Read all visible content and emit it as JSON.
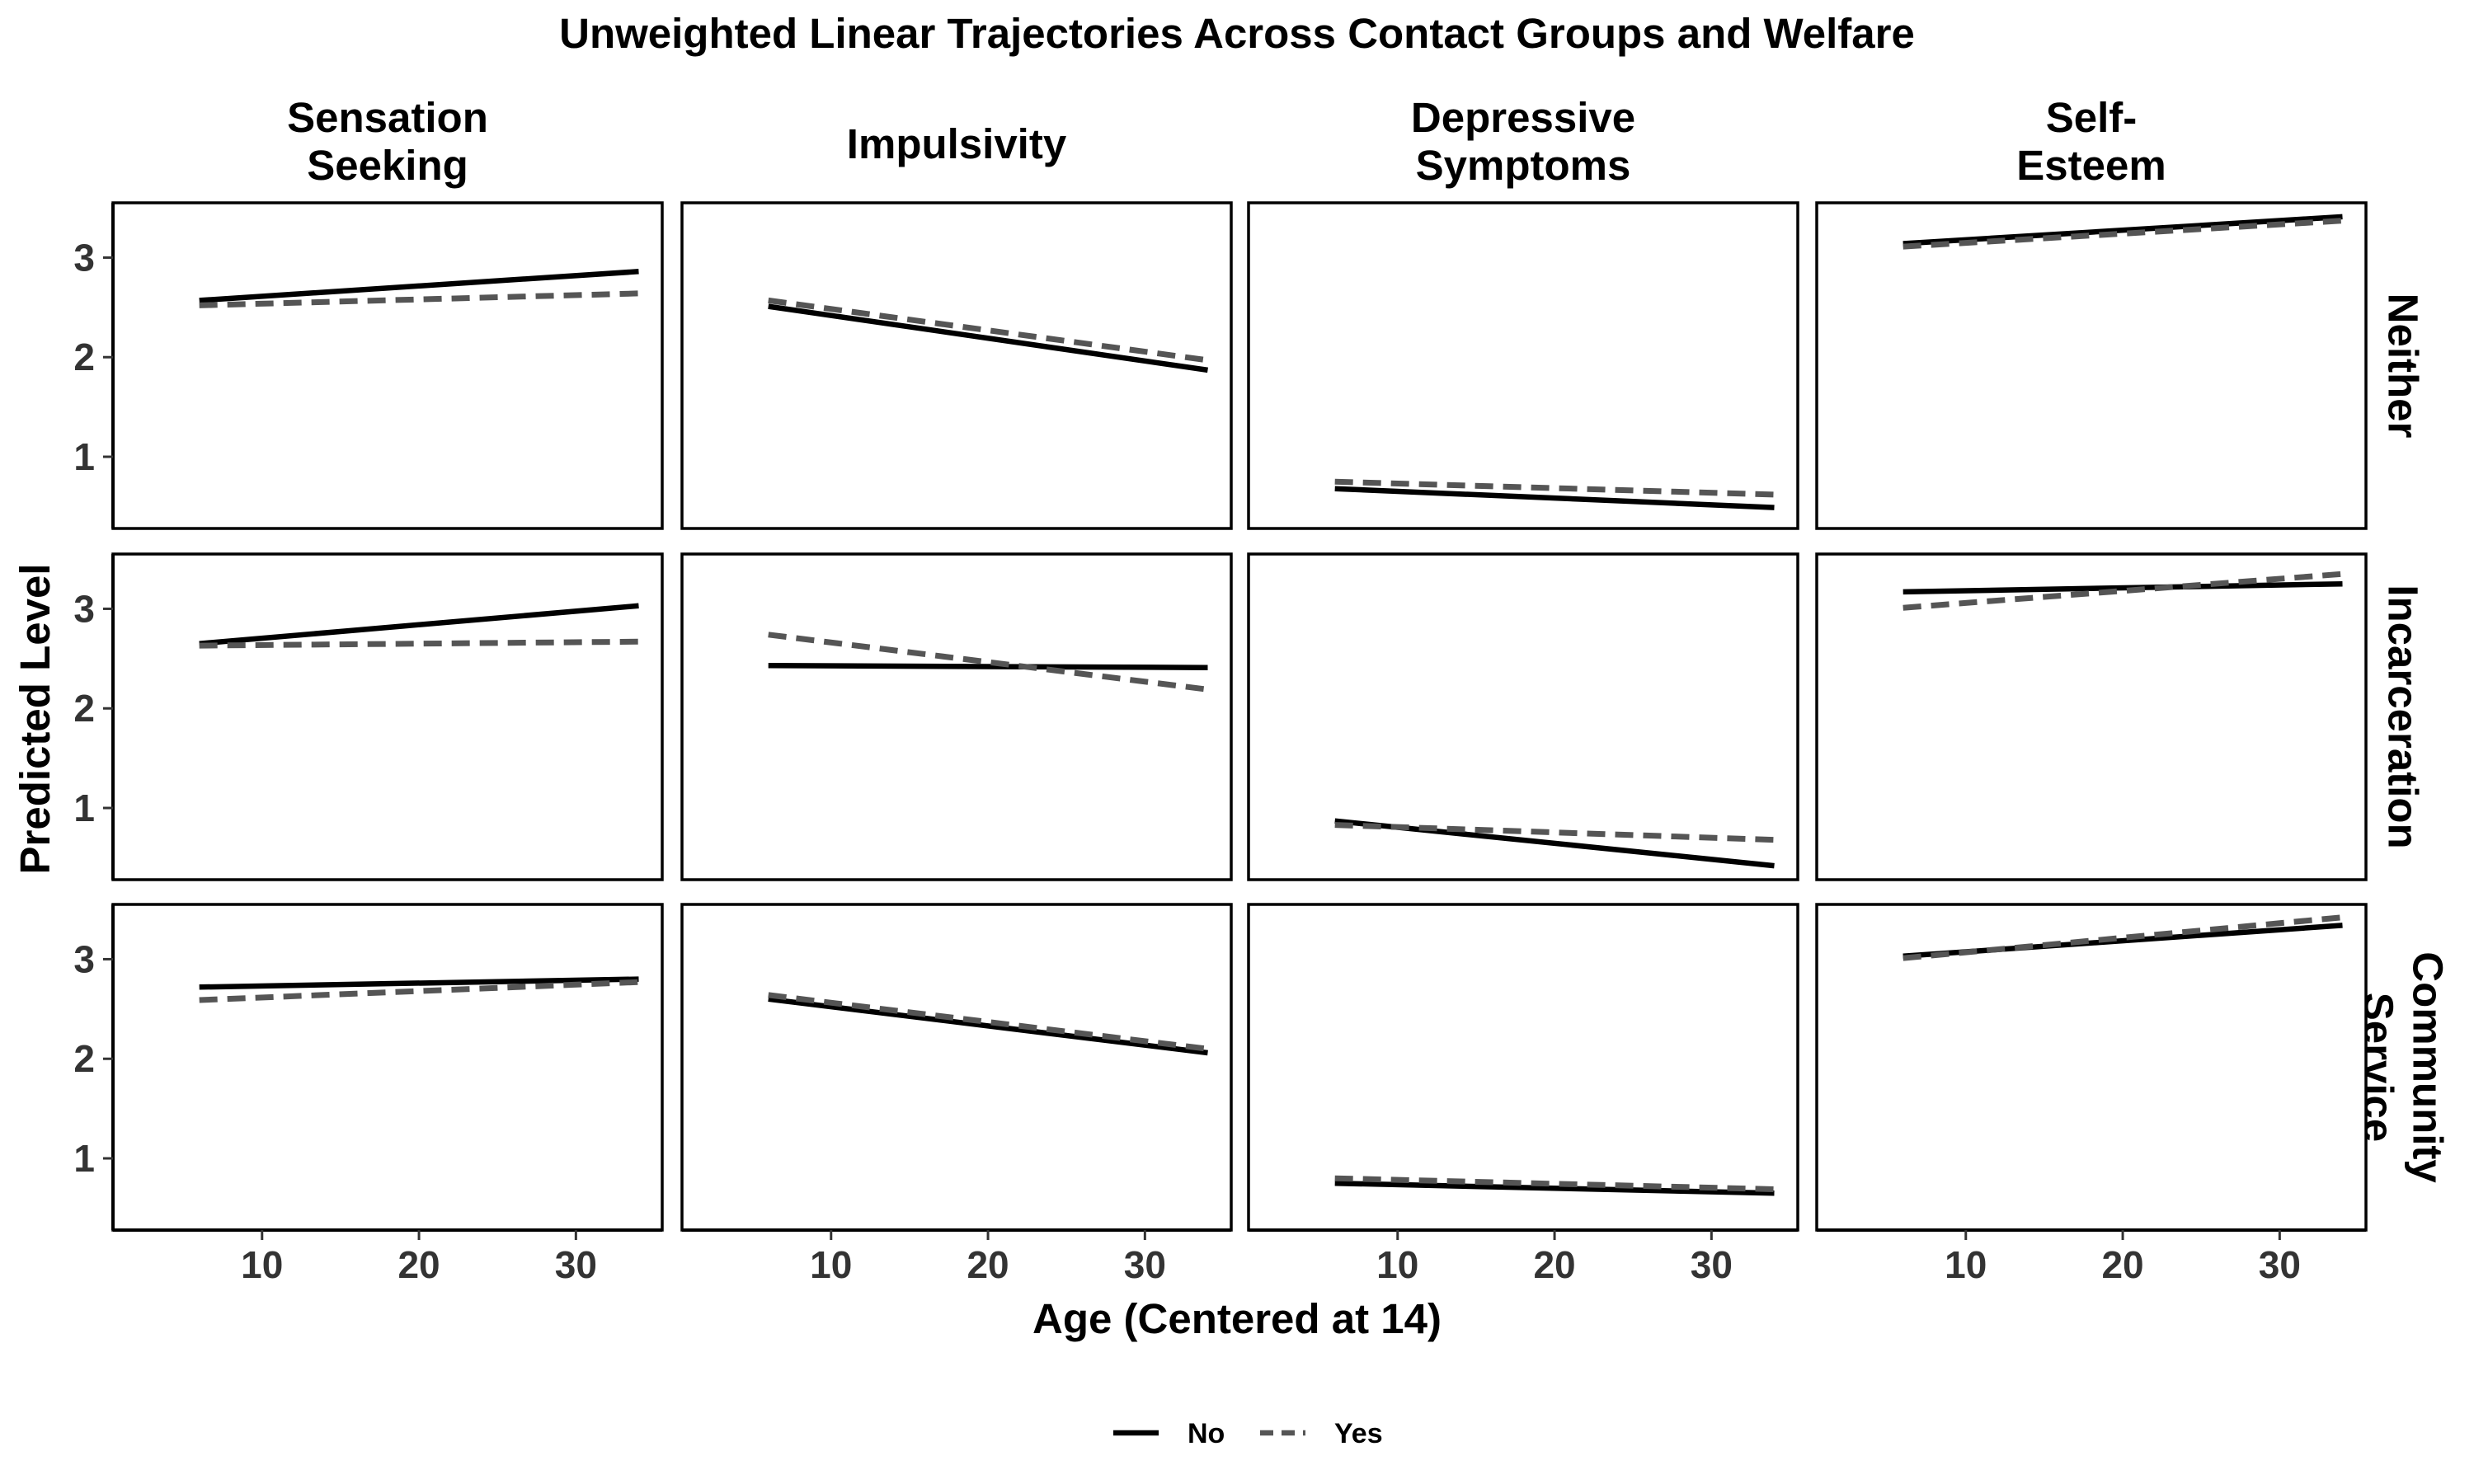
{
  "chart_data": {
    "type": "line",
    "title": "Unweighted Linear Trajectories Across Contact Groups and Welfare",
    "xlabel": "Age (Centered at 14)",
    "ylabel": "Predicted Level",
    "xlim": [
      0.5,
      35.5
    ],
    "ylim": [
      0.28,
      3.55
    ],
    "x_ticks": [
      10,
      20,
      30
    ],
    "y_ticks": [
      1,
      2,
      3
    ],
    "grid": false,
    "columns": [
      {
        "key": "ss",
        "label_lines": [
          "Sensation",
          "Seeking"
        ]
      },
      {
        "key": "imp",
        "label_lines": [
          "Impulsivity"
        ]
      },
      {
        "key": "dep",
        "label_lines": [
          "Depressive",
          "Symptoms"
        ]
      },
      {
        "key": "se",
        "label_lines": [
          "Self-",
          "Esteem"
        ]
      }
    ],
    "rows": [
      {
        "key": "neither",
        "label_lines": [
          "Neither"
        ]
      },
      {
        "key": "incarceration",
        "label_lines": [
          "Incarceration"
        ]
      },
      {
        "key": "community_service",
        "label_lines": [
          "Community",
          "Service"
        ]
      }
    ],
    "legend": {
      "position": "bottom",
      "entries": [
        {
          "label": "No",
          "style": "solid",
          "color": "#000000"
        },
        {
          "label": "Yes",
          "style": "dashed",
          "color": "#555555"
        }
      ]
    },
    "panels": [
      {
        "row": "neither",
        "column": "ss",
        "series": [
          {
            "name": "No",
            "x": [
              6,
              34
            ],
            "y": [
              2.57,
              2.86
            ]
          },
          {
            "name": "Yes",
            "x": [
              6,
              34
            ],
            "y": [
              2.52,
              2.64
            ]
          }
        ]
      },
      {
        "row": "neither",
        "column": "imp",
        "series": [
          {
            "name": "No",
            "x": [
              6,
              34
            ],
            "y": [
              2.51,
              1.87
            ]
          },
          {
            "name": "Yes",
            "x": [
              6,
              34
            ],
            "y": [
              2.57,
              1.97
            ]
          }
        ]
      },
      {
        "row": "neither",
        "column": "dep",
        "series": [
          {
            "name": "No",
            "x": [
              6,
              34
            ],
            "y": [
              0.68,
              0.49
            ]
          },
          {
            "name": "Yes",
            "x": [
              6,
              34
            ],
            "y": [
              0.75,
              0.62
            ]
          }
        ]
      },
      {
        "row": "neither",
        "column": "se",
        "series": [
          {
            "name": "No",
            "x": [
              6,
              34
            ],
            "y": [
              3.14,
              3.41
            ]
          },
          {
            "name": "Yes",
            "x": [
              6,
              34
            ],
            "y": [
              3.11,
              3.37
            ]
          }
        ]
      },
      {
        "row": "incarceration",
        "column": "ss",
        "series": [
          {
            "name": "No",
            "x": [
              6,
              34
            ],
            "y": [
              2.65,
              3.03
            ]
          },
          {
            "name": "Yes",
            "x": [
              6,
              34
            ],
            "y": [
              2.63,
              2.67
            ]
          }
        ]
      },
      {
        "row": "incarceration",
        "column": "imp",
        "series": [
          {
            "name": "No",
            "x": [
              6,
              34
            ],
            "y": [
              2.43,
              2.41
            ]
          },
          {
            "name": "Yes",
            "x": [
              6,
              34
            ],
            "y": [
              2.74,
              2.19
            ]
          }
        ]
      },
      {
        "row": "incarceration",
        "column": "dep",
        "series": [
          {
            "name": "No",
            "x": [
              6,
              34
            ],
            "y": [
              0.87,
              0.42
            ]
          },
          {
            "name": "Yes",
            "x": [
              6,
              34
            ],
            "y": [
              0.83,
              0.68
            ]
          }
        ]
      },
      {
        "row": "incarceration",
        "column": "se",
        "series": [
          {
            "name": "No",
            "x": [
              6,
              34
            ],
            "y": [
              3.17,
              3.25
            ]
          },
          {
            "name": "Yes",
            "x": [
              6,
              34
            ],
            "y": [
              3.01,
              3.35
            ]
          }
        ]
      },
      {
        "row": "community_service",
        "column": "ss",
        "series": [
          {
            "name": "No",
            "x": [
              6,
              34
            ],
            "y": [
              2.72,
              2.8
            ]
          },
          {
            "name": "Yes",
            "x": [
              6,
              34
            ],
            "y": [
              2.59,
              2.77
            ]
          }
        ]
      },
      {
        "row": "community_service",
        "column": "imp",
        "series": [
          {
            "name": "No",
            "x": [
              6,
              34
            ],
            "y": [
              2.6,
              2.06
            ]
          },
          {
            "name": "Yes",
            "x": [
              6,
              34
            ],
            "y": [
              2.64,
              2.1
            ]
          }
        ]
      },
      {
        "row": "community_service",
        "column": "dep",
        "series": [
          {
            "name": "No",
            "x": [
              6,
              34
            ],
            "y": [
              0.75,
              0.65
            ]
          },
          {
            "name": "Yes",
            "x": [
              6,
              34
            ],
            "y": [
              0.8,
              0.69
            ]
          }
        ]
      },
      {
        "row": "community_service",
        "column": "se",
        "series": [
          {
            "name": "No",
            "x": [
              6,
              34
            ],
            "y": [
              3.03,
              3.34
            ]
          },
          {
            "name": "Yes",
            "x": [
              6,
              34
            ],
            "y": [
              3.01,
              3.42
            ]
          }
        ]
      }
    ]
  }
}
